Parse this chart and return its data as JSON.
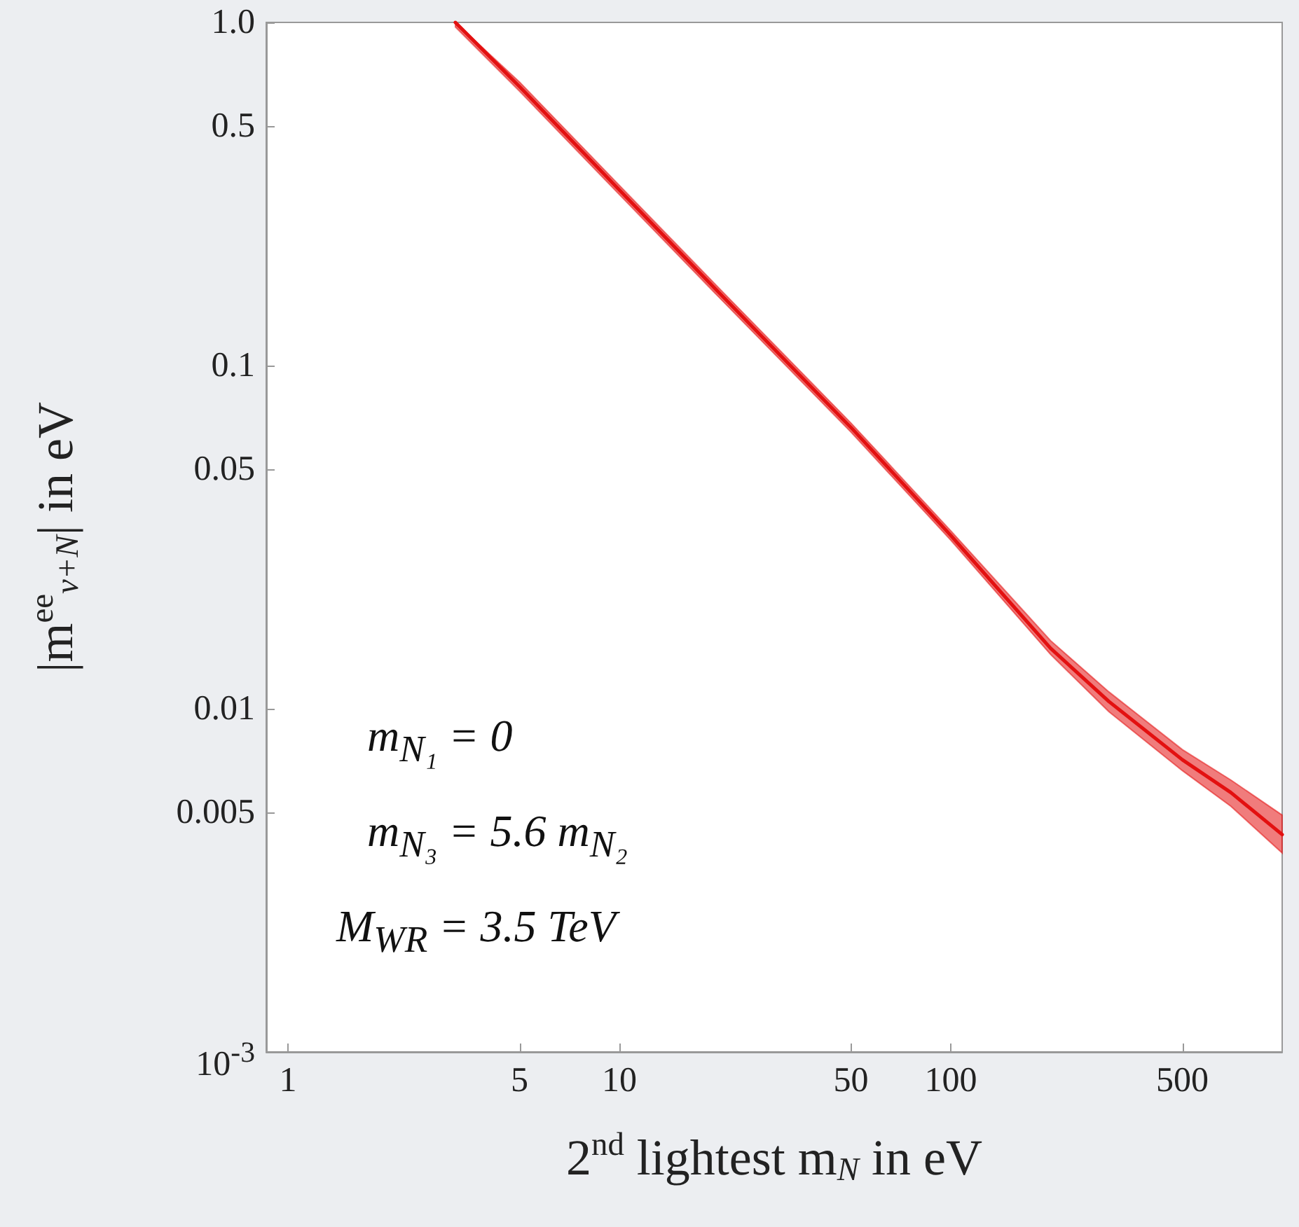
{
  "chart_data": {
    "type": "line",
    "xlabel": "2$^{nd}$ lightest m$_{N}$ in eV",
    "ylabel": "|m$^{ee}$$_{ν+N}$| in eV",
    "log": "xy",
    "xlim": [
      0.86,
      1000
    ],
    "ylim": [
      0.001,
      1
    ],
    "xticks": [
      1,
      5,
      10,
      50,
      100,
      500
    ],
    "yticks": [
      {
        "value": 0.001,
        "label": "10$^{-3}$"
      },
      0.005,
      0.01,
      0.05,
      0.1,
      0.5,
      {
        "value": 1,
        "label": "1.0"
      }
    ],
    "x": [
      3.2,
      5,
      10,
      20,
      50,
      100,
      200,
      300,
      500,
      700,
      1000
    ],
    "series": [
      {
        "color": "#e31010",
        "values": [
          1.0,
          0.65,
          0.325,
          0.163,
          0.066,
          0.032,
          0.015,
          0.0105,
          0.0071,
          0.0057,
          0.0043
        ],
        "lower": [
          0.97,
          0.63,
          0.315,
          0.158,
          0.064,
          0.031,
          0.0144,
          0.0098,
          0.0066,
          0.0052,
          0.0038
        ],
        "upper": [
          1.0,
          0.67,
          0.335,
          0.168,
          0.068,
          0.033,
          0.0158,
          0.0112,
          0.0076,
          0.0062,
          0.0049
        ]
      }
    ],
    "annotations": [
      "m$_{N₁}$ = 0",
      "m$_{N₃}$ = 5.6 m$_{N₂}$",
      "M$_{WR}$ = 3.5 TeV"
    ]
  }
}
